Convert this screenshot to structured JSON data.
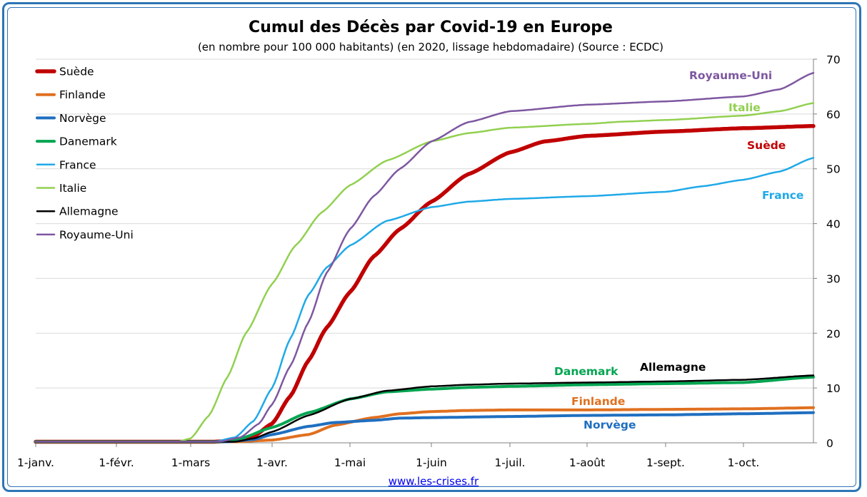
{
  "chart_data": {
    "type": "line",
    "title": "Cumul des Décès par Covid-19 en Europe",
    "subtitle": "(en nombre pour 100 000 habitants) (en 2020, lissage hebdomadaire) (Source : ECDC)",
    "x_ticks": [
      "1-janv.",
      "1-févr.",
      "1-mars",
      "1-avr.",
      "1-mai",
      "1-juin",
      "1-juil.",
      "1-août",
      "1-sept.",
      "1-oct."
    ],
    "y_ticks": [
      "0",
      "10",
      "20",
      "30",
      "40",
      "50",
      "60",
      "70"
    ],
    "ylim": [
      0,
      70
    ],
    "grid": true,
    "y_axis_side": "right",
    "legend_position": "top-left",
    "series": [
      {
        "name": "Suède",
        "color": "#c00000",
        "width": 5.5,
        "points": [
          [
            "2020-01-01",
            0.2
          ],
          [
            "2020-03-10",
            0.2
          ],
          [
            "2020-03-18",
            0.4
          ],
          [
            "2020-03-25",
            1.2
          ],
          [
            "2020-04-01",
            3.5
          ],
          [
            "2020-04-08",
            8.5
          ],
          [
            "2020-04-15",
            15
          ],
          [
            "2020-04-22",
            21
          ],
          [
            "2020-05-01",
            27.5
          ],
          [
            "2020-05-10",
            34
          ],
          [
            "2020-05-20",
            39
          ],
          [
            "2020-06-01",
            44
          ],
          [
            "2020-06-15",
            49
          ],
          [
            "2020-07-01",
            53
          ],
          [
            "2020-07-15",
            55
          ],
          [
            "2020-08-01",
            56
          ],
          [
            "2020-09-01",
            56.8
          ],
          [
            "2020-10-01",
            57.4
          ],
          [
            "2020-10-28",
            57.8
          ]
        ]
      },
      {
        "name": "Finlande",
        "color": "#e07020",
        "width": 4,
        "points": [
          [
            "2020-01-01",
            0.2
          ],
          [
            "2020-03-18",
            0.2
          ],
          [
            "2020-04-01",
            0.5
          ],
          [
            "2020-04-15",
            1.5
          ],
          [
            "2020-04-25",
            3.2
          ],
          [
            "2020-05-10",
            4.6
          ],
          [
            "2020-05-20",
            5.3
          ],
          [
            "2020-06-01",
            5.7
          ],
          [
            "2020-06-15",
            5.9
          ],
          [
            "2020-07-01",
            6.0
          ],
          [
            "2020-08-01",
            6.0
          ],
          [
            "2020-09-01",
            6.1
          ],
          [
            "2020-10-01",
            6.2
          ],
          [
            "2020-10-28",
            6.4
          ]
        ]
      },
      {
        "name": "Norvège",
        "color": "#1f6fc0",
        "width": 4,
        "points": [
          [
            "2020-01-01",
            0.2
          ],
          [
            "2020-03-15",
            0.2
          ],
          [
            "2020-03-25",
            0.6
          ],
          [
            "2020-04-01",
            1.5
          ],
          [
            "2020-04-15",
            3.0
          ],
          [
            "2020-04-25",
            3.7
          ],
          [
            "2020-05-10",
            4.1
          ],
          [
            "2020-05-20",
            4.5
          ],
          [
            "2020-06-01",
            4.6
          ],
          [
            "2020-07-01",
            4.8
          ],
          [
            "2020-08-01",
            5.0
          ],
          [
            "2020-09-01",
            5.1
          ],
          [
            "2020-10-01",
            5.3
          ],
          [
            "2020-10-28",
            5.5
          ]
        ]
      },
      {
        "name": "Danemark",
        "color": "#00a550",
        "width": 4,
        "points": [
          [
            "2020-01-01",
            0.2
          ],
          [
            "2020-03-12",
            0.2
          ],
          [
            "2020-03-20",
            0.8
          ],
          [
            "2020-04-01",
            2.8
          ],
          [
            "2020-04-15",
            5.5
          ],
          [
            "2020-05-01",
            8.0
          ],
          [
            "2020-05-15",
            9.3
          ],
          [
            "2020-06-01",
            9.8
          ],
          [
            "2020-06-15",
            10.1
          ],
          [
            "2020-07-01",
            10.3
          ],
          [
            "2020-08-01",
            10.6
          ],
          [
            "2020-09-01",
            10.8
          ],
          [
            "2020-10-01",
            11.0
          ],
          [
            "2020-10-28",
            12.0
          ]
        ]
      },
      {
        "name": "France",
        "color": "#1fa9e8",
        "width": 2.5,
        "points": [
          [
            "2020-01-01",
            0.2
          ],
          [
            "2020-03-10",
            0.2
          ],
          [
            "2020-03-18",
            1.0
          ],
          [
            "2020-03-25",
            4.0
          ],
          [
            "2020-04-01",
            10
          ],
          [
            "2020-04-08",
            19
          ],
          [
            "2020-04-15",
            27
          ],
          [
            "2020-04-22",
            32
          ],
          [
            "2020-05-01",
            36
          ],
          [
            "2020-05-15",
            40.5
          ],
          [
            "2020-06-01",
            43
          ],
          [
            "2020-06-15",
            44
          ],
          [
            "2020-07-01",
            44.5
          ],
          [
            "2020-08-01",
            45
          ],
          [
            "2020-09-01",
            45.8
          ],
          [
            "2020-09-15",
            46.8
          ],
          [
            "2020-10-01",
            48
          ],
          [
            "2020-10-15",
            49.5
          ],
          [
            "2020-10-28",
            52
          ]
        ]
      },
      {
        "name": "Italie",
        "color": "#92d050",
        "width": 2.5,
        "points": [
          [
            "2020-01-01",
            0.2
          ],
          [
            "2020-02-25",
            0.2
          ],
          [
            "2020-03-01",
            0.8
          ],
          [
            "2020-03-08",
            5
          ],
          [
            "2020-03-15",
            12
          ],
          [
            "2020-03-22",
            20
          ],
          [
            "2020-04-01",
            29
          ],
          [
            "2020-04-10",
            36
          ],
          [
            "2020-04-20",
            42
          ],
          [
            "2020-05-01",
            47
          ],
          [
            "2020-05-15",
            51.5
          ],
          [
            "2020-06-01",
            55
          ],
          [
            "2020-06-15",
            56.5
          ],
          [
            "2020-07-01",
            57.5
          ],
          [
            "2020-08-01",
            58.2
          ],
          [
            "2020-08-15",
            58.6
          ],
          [
            "2020-09-01",
            58.9
          ],
          [
            "2020-10-01",
            59.7
          ],
          [
            "2020-10-15",
            60.5
          ],
          [
            "2020-10-28",
            62
          ]
        ]
      },
      {
        "name": "Allemagne",
        "color": "#000000",
        "width": 2.5,
        "points": [
          [
            "2020-01-01",
            0.2
          ],
          [
            "2020-03-18",
            0.2
          ],
          [
            "2020-03-25",
            0.8
          ],
          [
            "2020-04-01",
            2.0
          ],
          [
            "2020-04-15",
            5.0
          ],
          [
            "2020-05-01",
            8.0
          ],
          [
            "2020-05-15",
            9.5
          ],
          [
            "2020-06-01",
            10.3
          ],
          [
            "2020-06-15",
            10.6
          ],
          [
            "2020-07-01",
            10.8
          ],
          [
            "2020-08-01",
            11.0
          ],
          [
            "2020-09-01",
            11.2
          ],
          [
            "2020-10-01",
            11.5
          ],
          [
            "2020-10-28",
            12.3
          ]
        ]
      },
      {
        "name": "Royaume-Uni",
        "color": "#7e57a0",
        "width": 2.5,
        "points": [
          [
            "2020-01-01",
            0.2
          ],
          [
            "2020-03-12",
            0.2
          ],
          [
            "2020-03-20",
            1.0
          ],
          [
            "2020-03-27",
            3.5
          ],
          [
            "2020-04-01",
            7
          ],
          [
            "2020-04-08",
            14
          ],
          [
            "2020-04-15",
            22
          ],
          [
            "2020-04-22",
            31
          ],
          [
            "2020-05-01",
            39
          ],
          [
            "2020-05-10",
            45
          ],
          [
            "2020-05-20",
            50
          ],
          [
            "2020-06-01",
            55
          ],
          [
            "2020-06-15",
            58.5
          ],
          [
            "2020-07-01",
            60.5
          ],
          [
            "2020-08-01",
            61.7
          ],
          [
            "2020-09-01",
            62.3
          ],
          [
            "2020-10-01",
            63.2
          ],
          [
            "2020-10-15",
            64.5
          ],
          [
            "2020-10-28",
            67.5
          ]
        ]
      }
    ],
    "annotations": [
      {
        "text": "Royaume-Uni",
        "color": "#7e57a0",
        "near": "Royaume-Uni"
      },
      {
        "text": "Italie",
        "color": "#92d050",
        "near": "Italie"
      },
      {
        "text": "Suède",
        "color": "#c00000",
        "near": "Suède"
      },
      {
        "text": "France",
        "color": "#1fa9e8",
        "near": "France"
      },
      {
        "text": "Danemark",
        "color": "#00a550",
        "near": "Danemark"
      },
      {
        "text": "Allemagne",
        "color": "#000000",
        "near": "Allemagne"
      },
      {
        "text": "Finlande",
        "color": "#e07020",
        "near": "Finlande"
      },
      {
        "text": "Norvège",
        "color": "#1f6fc0",
        "near": "Norvège"
      }
    ]
  },
  "footer": {
    "source_link": "www.les-crises.fr"
  }
}
